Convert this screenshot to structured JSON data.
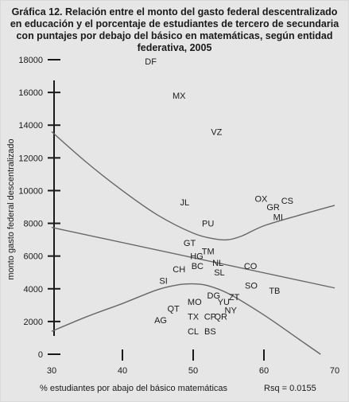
{
  "title_lines": [
    "Gráfica 12. Relación entre el monto del gasto federal descentralizado",
    "en educación y el porcentaje de estudiantes de tercero de secundaria",
    "con puntajes por debajo del básico en matemáticas, según entidad",
    "federativa, 2005"
  ],
  "rsq_label": "Rsq = 0.0155",
  "chart_data": {
    "type": "scatter",
    "xlabel": "% estudiantes por abajo del básico matemáticas",
    "ylabel": "monto gasto federal descentralizado",
    "xlim": [
      30,
      70
    ],
    "ylim": [
      0,
      18000
    ],
    "x_ticks": [
      30,
      40,
      50,
      60,
      70
    ],
    "y_ticks": [
      0,
      2000,
      4000,
      6000,
      8000,
      10000,
      12000,
      14000,
      16000,
      18000
    ],
    "grid": false,
    "points": [
      {
        "label": "DF",
        "x": 44.0,
        "y": 17900
      },
      {
        "label": "MX",
        "x": 48.0,
        "y": 15800
      },
      {
        "label": "VZ",
        "x": 53.3,
        "y": 13600
      },
      {
        "label": "JL",
        "x": 48.8,
        "y": 9300
      },
      {
        "label": "OX",
        "x": 59.6,
        "y": 9500
      },
      {
        "label": "CS",
        "x": 63.3,
        "y": 9400
      },
      {
        "label": "GR",
        "x": 61.3,
        "y": 9000
      },
      {
        "label": "MI",
        "x": 62.0,
        "y": 8400
      },
      {
        "label": "PU",
        "x": 52.1,
        "y": 8000
      },
      {
        "label": "GT",
        "x": 49.5,
        "y": 6800
      },
      {
        "label": "TM",
        "x": 52.1,
        "y": 6300
      },
      {
        "label": "HG",
        "x": 50.5,
        "y": 6000
      },
      {
        "label": "NL",
        "x": 53.5,
        "y": 5600
      },
      {
        "label": "BC",
        "x": 50.6,
        "y": 5400
      },
      {
        "label": "CO",
        "x": 58.1,
        "y": 5400
      },
      {
        "label": "CH",
        "x": 48.0,
        "y": 5200
      },
      {
        "label": "SL",
        "x": 53.7,
        "y": 5000
      },
      {
        "label": "SI",
        "x": 45.8,
        "y": 4500
      },
      {
        "label": "SO",
        "x": 58.2,
        "y": 4200
      },
      {
        "label": "TB",
        "x": 61.5,
        "y": 3900
      },
      {
        "label": "DG",
        "x": 52.9,
        "y": 3600
      },
      {
        "label": "ZT",
        "x": 55.8,
        "y": 3500
      },
      {
        "label": "MO",
        "x": 50.2,
        "y": 3200
      },
      {
        "label": "YU",
        "x": 54.3,
        "y": 3200
      },
      {
        "label": "NY",
        "x": 55.3,
        "y": 2700
      },
      {
        "label": "QT",
        "x": 47.2,
        "y": 2800
      },
      {
        "label": "CP",
        "x": 52.4,
        "y": 2300
      },
      {
        "label": "QR",
        "x": 53.9,
        "y": 2300
      },
      {
        "label": "TX",
        "x": 50.0,
        "y": 2300
      },
      {
        "label": "AG",
        "x": 45.4,
        "y": 2100
      },
      {
        "label": "CL",
        "x": 50.0,
        "y": 1400
      },
      {
        "label": "BS",
        "x": 52.4,
        "y": 1400
      }
    ],
    "fit_line": {
      "x": [
        30,
        70
      ],
      "y": [
        7750,
        4050
      ]
    },
    "upper_band": {
      "x": [
        30,
        35,
        40,
        45,
        50,
        53,
        55,
        57,
        60,
        65,
        70
      ],
      "y": [
        13600,
        11700,
        10000,
        8500,
        7400,
        7050,
        7000,
        7250,
        7850,
        8500,
        9100
      ]
    },
    "lower_band": {
      "x": [
        30,
        35,
        40,
        45,
        48,
        50,
        52,
        55,
        60,
        65,
        68
      ],
      "y": [
        1400,
        2300,
        3100,
        3950,
        4250,
        4300,
        4200,
        3700,
        2400,
        900,
        0
      ]
    }
  }
}
